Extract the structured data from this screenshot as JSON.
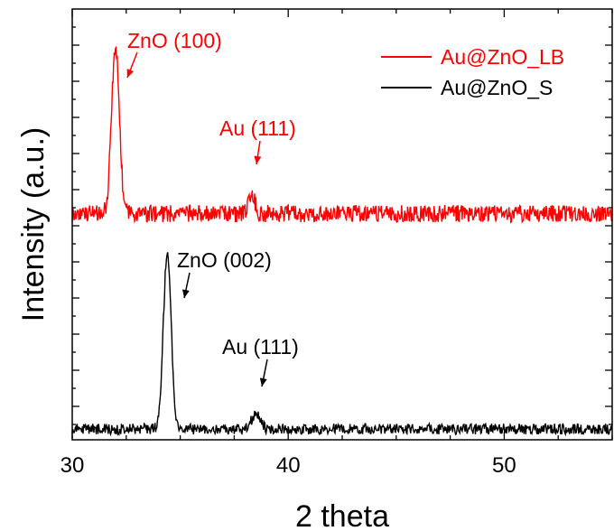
{
  "chart_data": {
    "type": "line",
    "xlabel": "2 theta",
    "ylabel": "Intensity (a.u.)",
    "xlim": [
      30,
      55
    ],
    "x_ticks": [
      30,
      40,
      50
    ],
    "x_tick_labels": [
      "30",
      "40",
      "50"
    ],
    "grid": false,
    "legend_position": "top-right",
    "colors": {
      "Au@ZnO_LB": "#ff0000",
      "Au@ZnO_S": "#000000"
    },
    "series": [
      {
        "name": "Au@ZnO_LB",
        "color": "#ff0000",
        "baseline": 1.05,
        "noise_amplitude": 0.04,
        "peaks": [
          {
            "x": 32.0,
            "height": 0.78,
            "width": 0.18
          },
          {
            "x": 38.3,
            "height": 0.1,
            "width": 0.15
          }
        ]
      },
      {
        "name": "Au@ZnO_S",
        "color": "#000000",
        "baseline": 0.05,
        "noise_amplitude": 0.025,
        "peaks": [
          {
            "x": 34.4,
            "height": 0.82,
            "width": 0.18
          },
          {
            "x": 38.5,
            "height": 0.07,
            "width": 0.2
          }
        ]
      }
    ],
    "annotations": [
      {
        "text": "ZnO (100)",
        "color": "#ff0000",
        "x": 32.0,
        "series": "Au@ZnO_LB"
      },
      {
        "text": "Au (111)",
        "color": "#ff0000",
        "x": 38.3,
        "series": "Au@ZnO_LB"
      },
      {
        "text": "ZnO (002)",
        "color": "#000000",
        "x": 34.4,
        "series": "Au@ZnO_S"
      },
      {
        "text": "Au (111)",
        "color": "#000000",
        "x": 38.5,
        "series": "Au@ZnO_S"
      }
    ]
  }
}
